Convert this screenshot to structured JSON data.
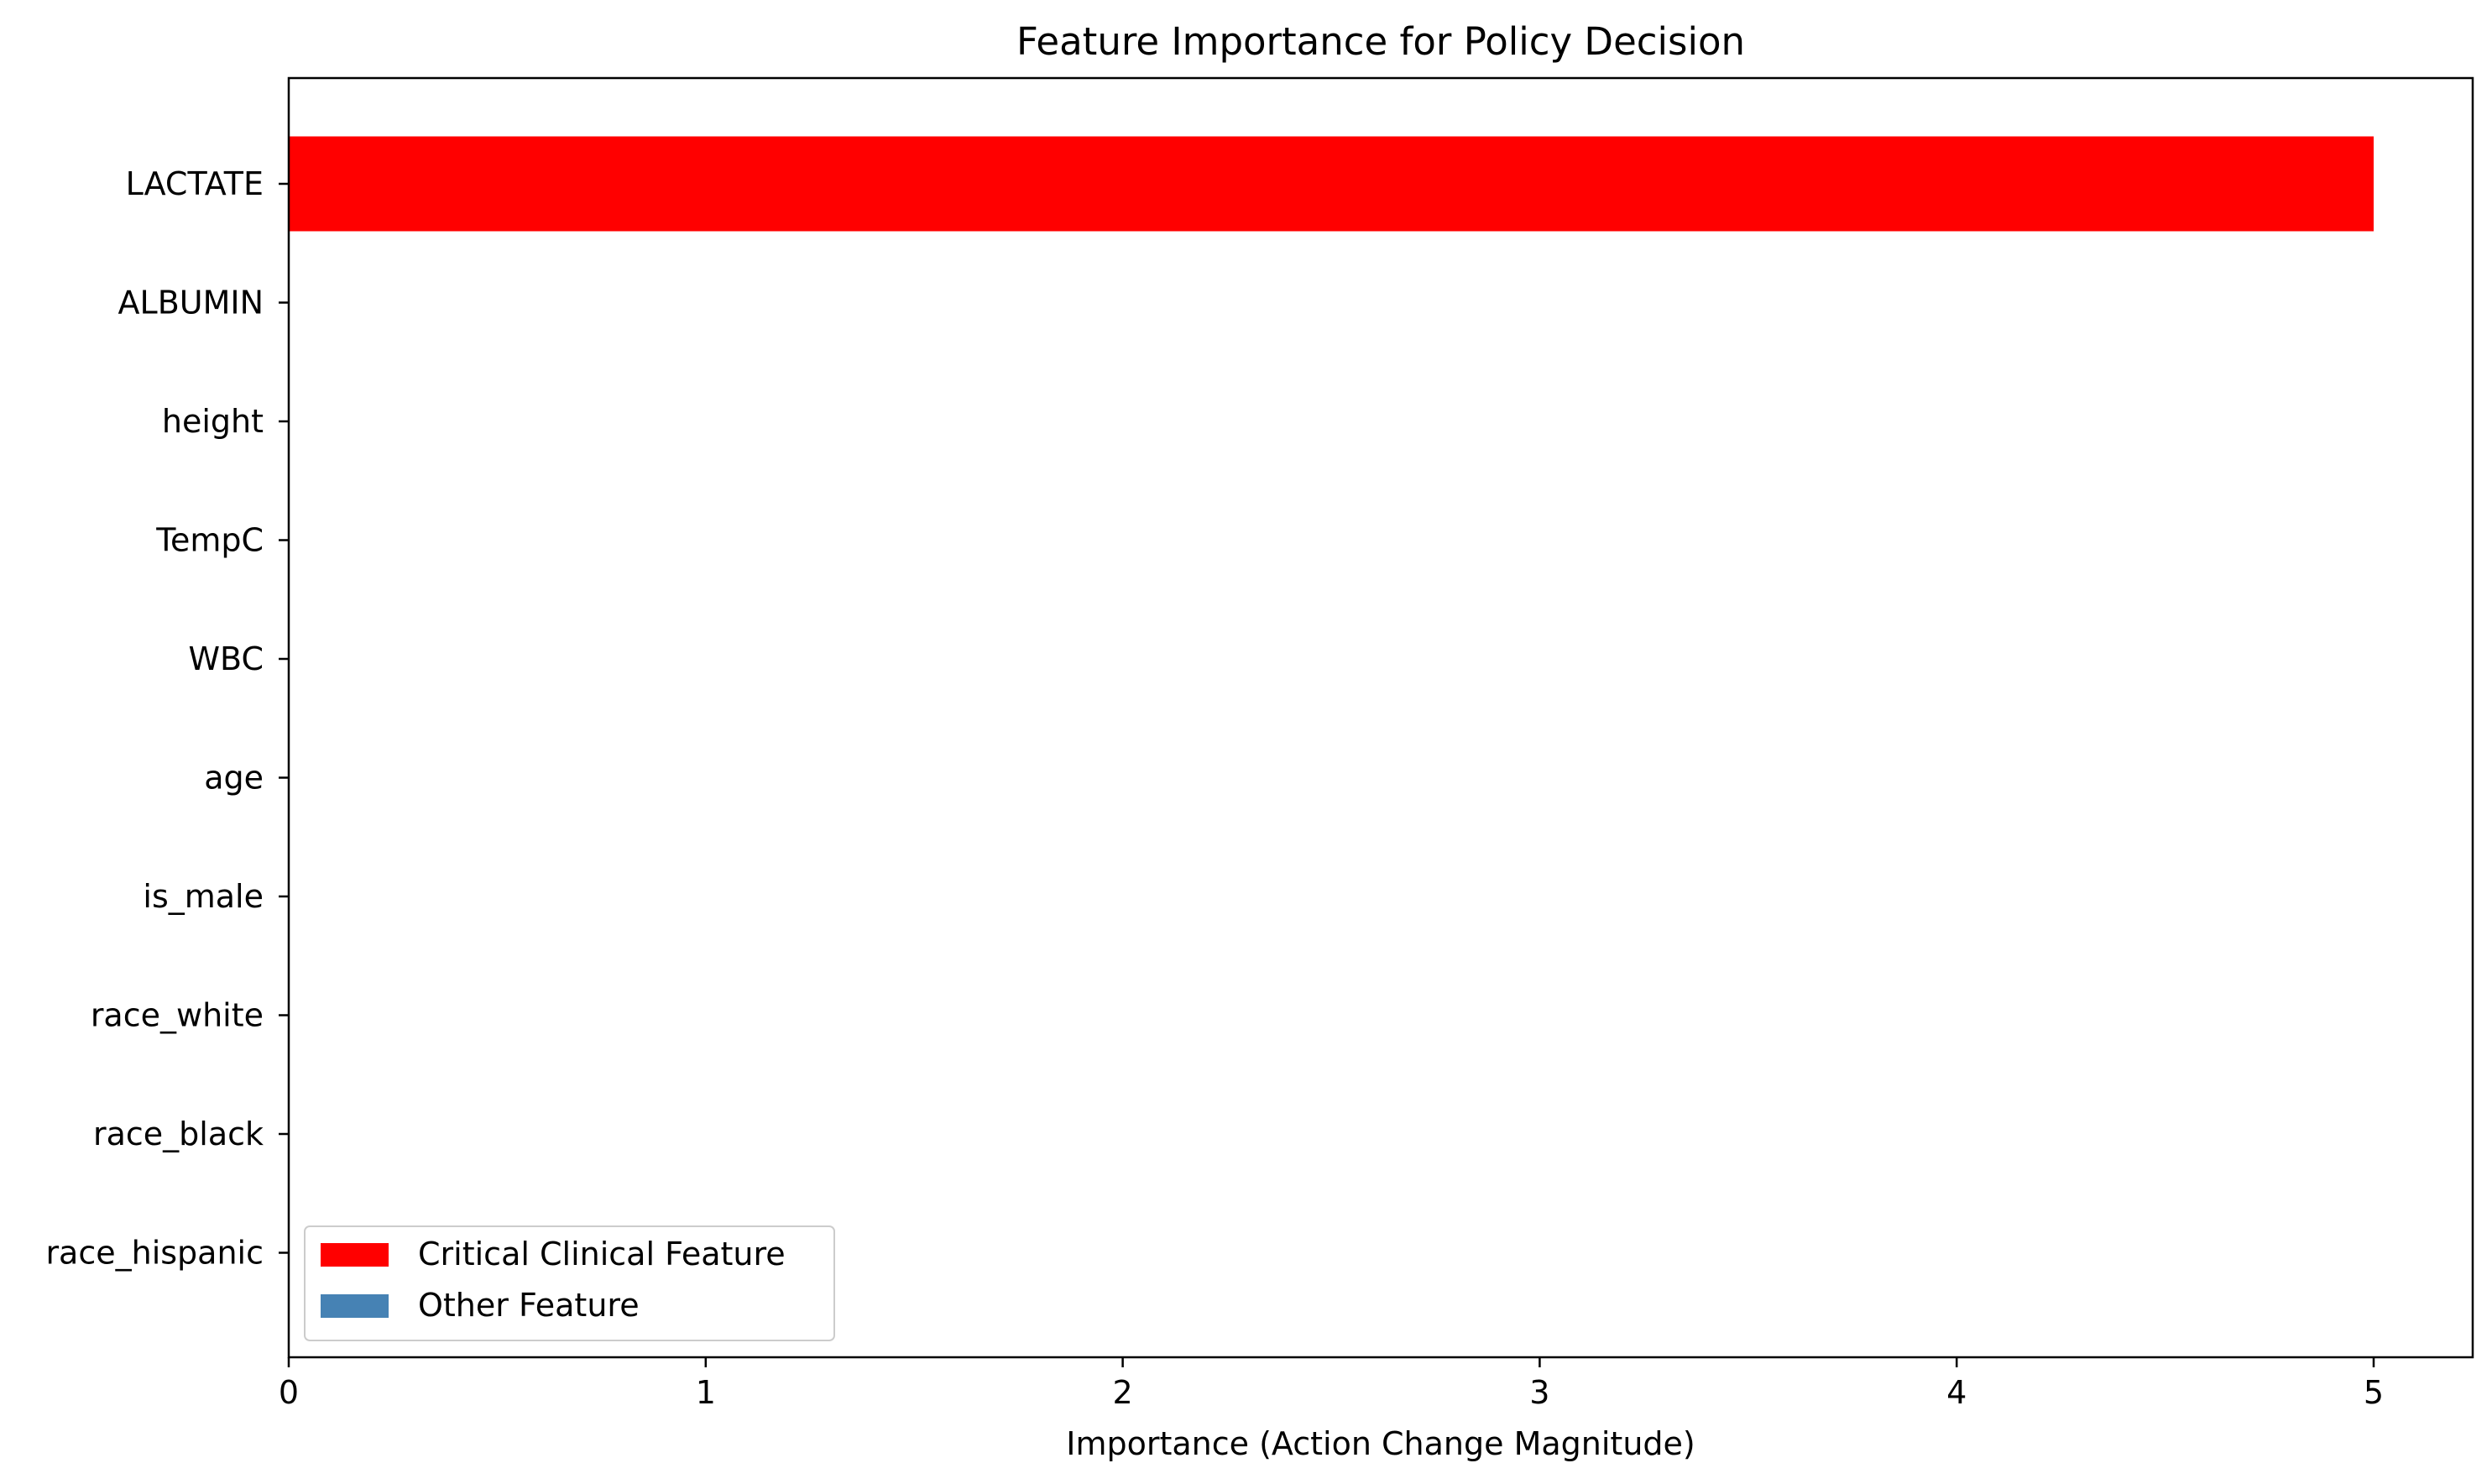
{
  "chart_data": {
    "type": "bar",
    "orientation": "horizontal",
    "title": "Feature Importance for Policy Decision",
    "xlabel": "Importance (Action Change Magnitude)",
    "ylabel": "",
    "xlim": [
      0,
      5.25
    ],
    "x_ticks": [
      0,
      1,
      2,
      3,
      4,
      5
    ],
    "categories": [
      "LACTATE",
      "ALBUMIN",
      "height",
      "TempC",
      "WBC",
      "age",
      "is_male",
      "race_white",
      "race_black",
      "race_hispanic"
    ],
    "values": [
      5.0,
      0,
      0,
      0,
      0,
      0,
      0,
      0,
      0,
      0
    ],
    "bar_groups": [
      "critical",
      "other",
      "other",
      "other",
      "other",
      "other",
      "other",
      "other",
      "other",
      "other"
    ],
    "grid": false,
    "legend": {
      "placement": "lower-left",
      "entries": [
        {
          "key": "critical",
          "label": "Critical Clinical Feature",
          "color": "#ff0000"
        },
        {
          "key": "other",
          "label": "Other Feature",
          "color": "#4682b4"
        }
      ]
    }
  }
}
